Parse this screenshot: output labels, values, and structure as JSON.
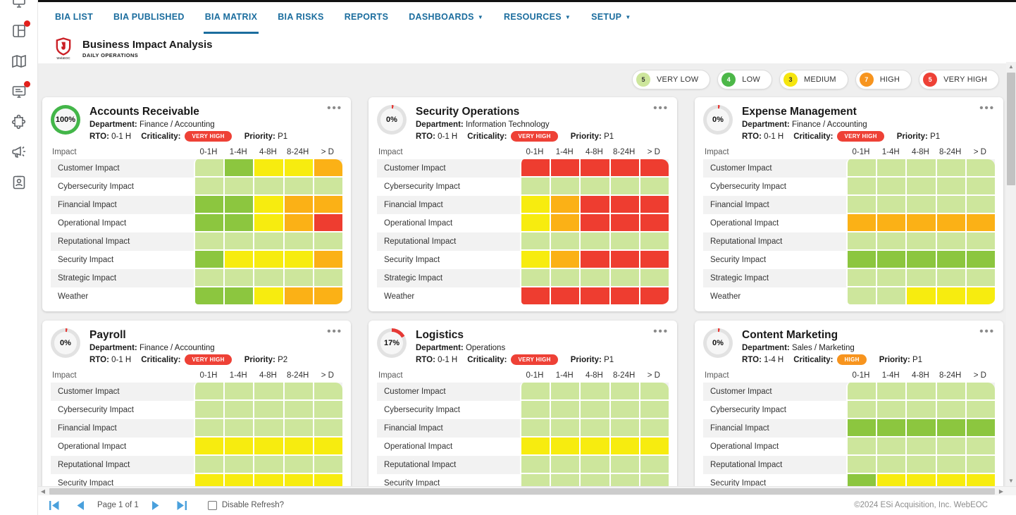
{
  "nav": {
    "tabs": [
      {
        "label": "BIA LIST",
        "active": false,
        "dropdown": false
      },
      {
        "label": "BIA PUBLISHED",
        "active": false,
        "dropdown": false
      },
      {
        "label": "BIA MATRIX",
        "active": true,
        "dropdown": false
      },
      {
        "label": "BIA RISKS",
        "active": false,
        "dropdown": false
      },
      {
        "label": "REPORTS",
        "active": false,
        "dropdown": false
      },
      {
        "label": "DASHBOARDS",
        "active": false,
        "dropdown": true
      },
      {
        "label": "RESOURCES",
        "active": false,
        "dropdown": true
      },
      {
        "label": "SETUP",
        "active": false,
        "dropdown": true
      }
    ]
  },
  "sidebar": {
    "icons": [
      {
        "name": "boards",
        "notification": true
      },
      {
        "name": "maps",
        "notification": false
      },
      {
        "name": "messages",
        "notification": true
      },
      {
        "name": "plugins",
        "notification": false
      },
      {
        "name": "broadcast",
        "notification": false
      },
      {
        "name": "contacts",
        "notification": false
      }
    ]
  },
  "header": {
    "title": "Business Impact Analysis",
    "subtitle": "DAILY OPERATIONS",
    "logo_text": "WebEOC"
  },
  "legend": [
    {
      "count": "5",
      "label": "VERY LOW",
      "color": "#cde69c",
      "text_color": "#333333"
    },
    {
      "count": "4",
      "label": "LOW",
      "color": "#4cb748",
      "text_color": "#ffffff"
    },
    {
      "count": "3",
      "label": "MEDIUM",
      "color": "#f5e50e",
      "text_color": "#333333"
    },
    {
      "count": "7",
      "label": "HIGH",
      "color": "#f7941e",
      "text_color": "#ffffff"
    },
    {
      "count": "5",
      "label": "VERY HIGH",
      "color": "#ee4136",
      "text_color": "#ffffff"
    }
  ],
  "labels": {
    "department": "Department:",
    "rto": "RTO:",
    "criticality": "Criticality:",
    "priority": "Priority:",
    "impact": "Impact"
  },
  "severity_colors": {
    "VL": "#cde69c",
    "L": "#8cc63f",
    "M": "#f7ec0f",
    "H": "#fbb116",
    "VH": "#ee3d30"
  },
  "criticality_colors": {
    "VERY HIGH": "#ee4136",
    "HIGH": "#f7941e"
  },
  "progress": {
    "complete_color": "#43b649",
    "incomplete_color": "#e53935",
    "track_color": "#e2e2e2"
  },
  "matrix": {
    "columns": [
      "0-1H",
      "1-4H",
      "4-8H",
      "8-24H",
      "> D"
    ],
    "rows": [
      "Customer Impact",
      "Cybersecurity Impact",
      "Financial Impact",
      "Operational Impact",
      "Reputational Impact",
      "Security Impact",
      "Strategic Impact",
      "Weather"
    ]
  },
  "cards": [
    {
      "title": "Accounts Receivable",
      "percent_label": "100%",
      "percent": 100,
      "department": "Finance / Accounting",
      "rto": "0-1 H",
      "criticality": "VERY HIGH",
      "priority": "P1",
      "cells": [
        [
          "VL",
          "L",
          "M",
          "M",
          "H"
        ],
        [
          "VL",
          "VL",
          "VL",
          "VL",
          "VL"
        ],
        [
          "L",
          "L",
          "M",
          "H",
          "H"
        ],
        [
          "L",
          "L",
          "M",
          "H",
          "VH"
        ],
        [
          "VL",
          "VL",
          "VL",
          "VL",
          "VL"
        ],
        [
          "L",
          "M",
          "M",
          "M",
          "H"
        ],
        [
          "VL",
          "VL",
          "VL",
          "VL",
          "VL"
        ],
        [
          "L",
          "L",
          "M",
          "H",
          "H"
        ]
      ]
    },
    {
      "title": "Security Operations",
      "percent_label": "0%",
      "percent": 0,
      "department": "Information Technology",
      "rto": "0-1 H",
      "criticality": "VERY HIGH",
      "priority": "P1",
      "cells": [
        [
          "VH",
          "VH",
          "VH",
          "VH",
          "VH"
        ],
        [
          "VL",
          "VL",
          "VL",
          "VL",
          "VL"
        ],
        [
          "M",
          "H",
          "VH",
          "VH",
          "VH"
        ],
        [
          "M",
          "H",
          "VH",
          "VH",
          "VH"
        ],
        [
          "VL",
          "VL",
          "VL",
          "VL",
          "VL"
        ],
        [
          "M",
          "H",
          "VH",
          "VH",
          "VH"
        ],
        [
          "VL",
          "VL",
          "VL",
          "VL",
          "VL"
        ],
        [
          "VH",
          "VH",
          "VH",
          "VH",
          "VH"
        ]
      ]
    },
    {
      "title": "Expense Management",
      "percent_label": "0%",
      "percent": 0,
      "department": "Finance / Accounting",
      "rto": "0-1 H",
      "criticality": "VERY HIGH",
      "priority": "P1",
      "cells": [
        [
          "VL",
          "VL",
          "VL",
          "VL",
          "VL"
        ],
        [
          "VL",
          "VL",
          "VL",
          "VL",
          "VL"
        ],
        [
          "VL",
          "VL",
          "VL",
          "VL",
          "VL"
        ],
        [
          "H",
          "H",
          "H",
          "H",
          "H"
        ],
        [
          "VL",
          "VL",
          "VL",
          "VL",
          "VL"
        ],
        [
          "L",
          "L",
          "L",
          "L",
          "L"
        ],
        [
          "VL",
          "VL",
          "VL",
          "VL",
          "VL"
        ],
        [
          "VL",
          "VL",
          "M",
          "M",
          "M"
        ]
      ]
    },
    {
      "title": "Payroll",
      "percent_label": "0%",
      "percent": 0,
      "department": "Finance / Accounting",
      "rto": "0-1 H",
      "criticality": "VERY HIGH",
      "priority": "P2",
      "cells": [
        [
          "VL",
          "VL",
          "VL",
          "VL",
          "VL"
        ],
        [
          "VL",
          "VL",
          "VL",
          "VL",
          "VL"
        ],
        [
          "VL",
          "VL",
          "VL",
          "VL",
          "VL"
        ],
        [
          "M",
          "M",
          "M",
          "M",
          "M"
        ],
        [
          "VL",
          "VL",
          "VL",
          "VL",
          "VL"
        ],
        [
          "M",
          "M",
          "M",
          "M",
          "M"
        ]
      ]
    },
    {
      "title": "Logistics",
      "percent_label": "17%",
      "percent": 17,
      "department": "Operations",
      "rto": "0-1 H",
      "criticality": "VERY HIGH",
      "priority": "P1",
      "cells": [
        [
          "VL",
          "VL",
          "VL",
          "VL",
          "VL"
        ],
        [
          "VL",
          "VL",
          "VL",
          "VL",
          "VL"
        ],
        [
          "VL",
          "VL",
          "VL",
          "VL",
          "VL"
        ],
        [
          "M",
          "M",
          "M",
          "M",
          "M"
        ],
        [
          "VL",
          "VL",
          "VL",
          "VL",
          "VL"
        ],
        [
          "VL",
          "VL",
          "VL",
          "VL",
          "VL"
        ]
      ]
    },
    {
      "title": "Content Marketing",
      "percent_label": "0%",
      "percent": 0,
      "department": "Sales / Marketing",
      "rto": "1-4 H",
      "criticality": "HIGH",
      "priority": "P1",
      "cells": [
        [
          "VL",
          "VL",
          "VL",
          "VL",
          "VL"
        ],
        [
          "VL",
          "VL",
          "VL",
          "VL",
          "VL"
        ],
        [
          "L",
          "L",
          "L",
          "L",
          "L"
        ],
        [
          "VL",
          "VL",
          "VL",
          "VL",
          "VL"
        ],
        [
          "VL",
          "VL",
          "VL",
          "VL",
          "VL"
        ],
        [
          "L",
          "M",
          "M",
          "M",
          "M"
        ]
      ]
    }
  ],
  "footer": {
    "page_text": "Page 1 of 1",
    "disable_refresh_label": "Disable Refresh?",
    "copyright": "©2024 ESi Acquisition, Inc. WebEOC"
  }
}
